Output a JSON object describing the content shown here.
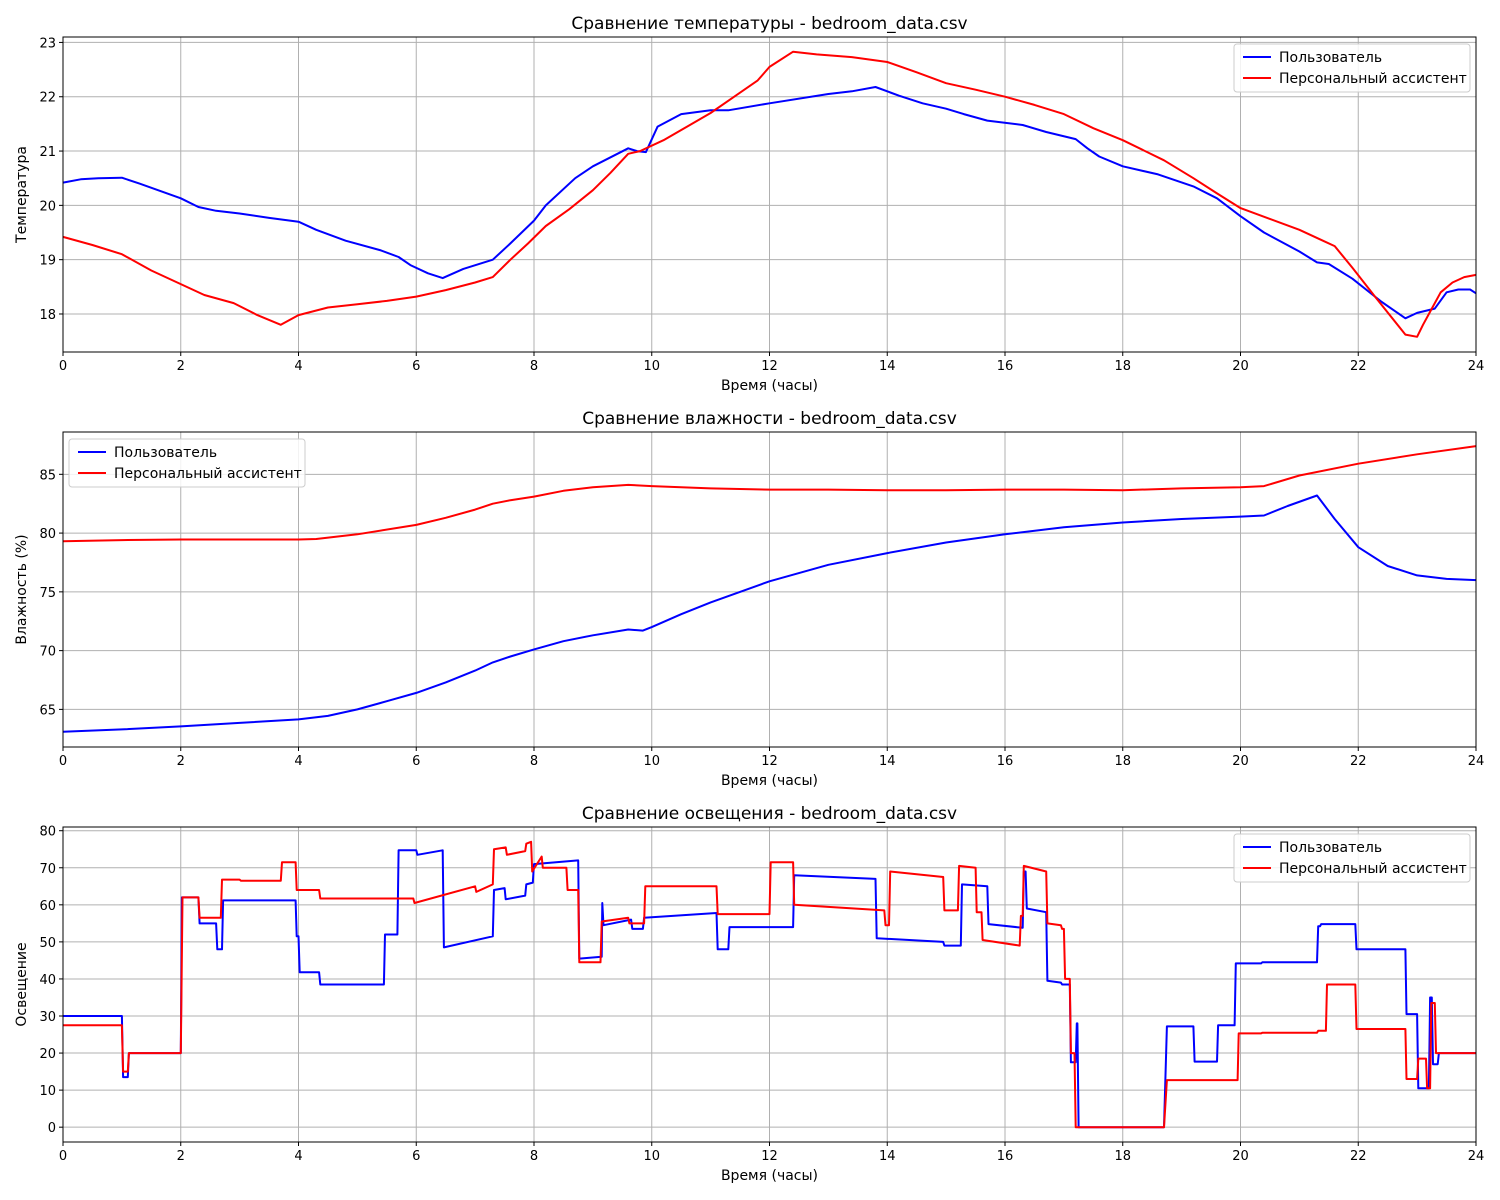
{
  "chart_data": [
    {
      "type": "line",
      "title": "Сравнение температуры - bedroom_data.csv",
      "xlabel": "Время (часы)",
      "ylabel": "Температура",
      "xlim": [
        0,
        24
      ],
      "ylim": [
        17.3,
        23.1
      ],
      "xticks": [
        0,
        2,
        4,
        6,
        8,
        10,
        12,
        14,
        16,
        18,
        20,
        22,
        24
      ],
      "yticks": [
        18,
        19,
        20,
        21,
        22,
        23
      ],
      "grid": true,
      "legend": "top-right",
      "series": [
        {
          "name": "Пользователь",
          "color": "#0000ff",
          "x": [
            0,
            0.3,
            0.6,
            1.0,
            1.3,
            2.0,
            2.3,
            2.6,
            3.0,
            3.5,
            4.0,
            4.3,
            4.8,
            5.4,
            5.7,
            5.9,
            6.2,
            6.45,
            6.8,
            7.3,
            7.6,
            8.0,
            8.2,
            8.7,
            9.0,
            9.6,
            9.75,
            9.9,
            10.1,
            10.5,
            11.0,
            11.3,
            12.0,
            13.0,
            13.4,
            13.8,
            14.2,
            14.6,
            15.0,
            15.3,
            15.7,
            16.3,
            16.7,
            17.2,
            17.4,
            17.6,
            18.0,
            18.6,
            19.2,
            19.6,
            20.0,
            20.4,
            21.0,
            21.3,
            21.5,
            21.9,
            22.4,
            22.8,
            23.0,
            23.3,
            23.5,
            23.7,
            23.9,
            24.0
          ],
          "y": [
            20.42,
            20.48,
            20.5,
            20.51,
            20.4,
            20.13,
            19.97,
            19.9,
            19.85,
            19.77,
            19.7,
            19.55,
            19.35,
            19.17,
            19.05,
            18.9,
            18.75,
            18.66,
            18.83,
            19.0,
            19.3,
            19.72,
            20.0,
            20.5,
            20.72,
            21.05,
            21.0,
            20.98,
            21.45,
            21.68,
            21.75,
            21.75,
            21.88,
            22.05,
            22.1,
            22.18,
            22.02,
            21.88,
            21.78,
            21.68,
            21.56,
            21.48,
            21.35,
            21.22,
            21.05,
            20.9,
            20.72,
            20.57,
            20.35,
            20.13,
            19.8,
            19.5,
            19.15,
            18.95,
            18.92,
            18.65,
            18.22,
            17.92,
            18.02,
            18.1,
            18.4,
            18.45,
            18.45,
            18.38
          ]
        },
        {
          "name": "Персональный ассистент",
          "color": "#ff0000",
          "x": [
            0,
            0.5,
            1.0,
            1.5,
            2.0,
            2.4,
            2.9,
            3.3,
            3.7,
            4.0,
            4.5,
            5.0,
            5.5,
            6.0,
            6.5,
            7.0,
            7.3,
            7.6,
            7.9,
            8.2,
            8.6,
            9.0,
            9.3,
            9.6,
            9.8,
            10.2,
            10.6,
            11.0,
            11.4,
            11.8,
            12.0,
            12.4,
            12.8,
            13.4,
            14.0,
            14.5,
            15.0,
            15.5,
            16.0,
            16.5,
            17.0,
            17.5,
            18.0,
            18.7,
            19.2,
            19.6,
            20.0,
            20.5,
            21.0,
            21.4,
            21.6,
            21.9,
            22.3,
            22.8,
            23.0,
            23.1,
            23.25,
            23.4,
            23.6,
            23.8,
            24.0
          ],
          "y": [
            19.42,
            19.27,
            19.1,
            18.8,
            18.55,
            18.35,
            18.2,
            17.98,
            17.8,
            17.98,
            18.12,
            18.18,
            18.24,
            18.32,
            18.44,
            18.58,
            18.68,
            19.0,
            19.3,
            19.62,
            19.93,
            20.28,
            20.6,
            20.95,
            21.0,
            21.2,
            21.45,
            21.7,
            22.0,
            22.3,
            22.55,
            22.83,
            22.78,
            22.73,
            22.64,
            22.45,
            22.25,
            22.13,
            22.0,
            21.85,
            21.68,
            21.42,
            21.2,
            20.83,
            20.5,
            20.22,
            19.95,
            19.75,
            19.55,
            19.35,
            19.25,
            18.85,
            18.3,
            17.62,
            17.58,
            17.8,
            18.1,
            18.4,
            18.58,
            18.68,
            18.72
          ]
        }
      ]
    },
    {
      "type": "line",
      "title": "Сравнение влажности - bedroom_data.csv",
      "xlabel": "Время (часы)",
      "ylabel": "Влажность (%)",
      "xlim": [
        0,
        24
      ],
      "ylim": [
        61.8,
        88.6
      ],
      "xticks": [
        0,
        2,
        4,
        6,
        8,
        10,
        12,
        14,
        16,
        18,
        20,
        22,
        24
      ],
      "yticks": [
        65,
        70,
        75,
        80,
        85
      ],
      "grid": true,
      "legend": "top-left",
      "series": [
        {
          "name": "Пользователь",
          "color": "#0000ff",
          "x": [
            0,
            1,
            2,
            3,
            4,
            4.5,
            5,
            5.5,
            6,
            6.5,
            7,
            7.3,
            7.6,
            8,
            8.5,
            9,
            9.6,
            9.85,
            10,
            10.5,
            11,
            12,
            13,
            14,
            15,
            16,
            17,
            18,
            19,
            20,
            20.4,
            20.8,
            21.3,
            21.6,
            22,
            22.5,
            23,
            23.5,
            24
          ],
          "y": [
            63.1,
            63.3,
            63.55,
            63.85,
            64.15,
            64.45,
            65.0,
            65.7,
            66.4,
            67.3,
            68.3,
            69.0,
            69.5,
            70.1,
            70.8,
            71.3,
            71.8,
            71.7,
            72.0,
            73.1,
            74.1,
            75.9,
            77.3,
            78.3,
            79.2,
            79.9,
            80.5,
            80.9,
            81.2,
            81.4,
            81.5,
            82.3,
            83.2,
            81.2,
            78.8,
            77.2,
            76.4,
            76.1,
            76.0
          ]
        },
        {
          "name": "Персональный ассистент",
          "color": "#ff0000",
          "x": [
            0,
            1,
            2,
            3,
            4,
            4.3,
            5,
            6,
            6.5,
            7,
            7.3,
            7.6,
            8,
            8.5,
            9,
            9.6,
            10,
            11,
            12,
            13,
            14,
            15,
            16,
            17,
            18,
            19,
            20,
            20.4,
            21,
            22,
            23,
            24
          ],
          "y": [
            79.3,
            79.4,
            79.45,
            79.45,
            79.45,
            79.5,
            79.9,
            80.7,
            81.3,
            82.0,
            82.5,
            82.8,
            83.1,
            83.6,
            83.9,
            84.1,
            84.0,
            83.8,
            83.7,
            83.7,
            83.65,
            83.65,
            83.7,
            83.7,
            83.65,
            83.8,
            83.9,
            84.0,
            84.9,
            85.9,
            86.7,
            87.4
          ]
        }
      ]
    },
    {
      "type": "line",
      "title": "Сравнение освещения - bedroom_data.csv",
      "xlabel": "Время (часы)",
      "ylabel": "Освещение",
      "xlim": [
        0,
        24
      ],
      "ylim": [
        -4,
        81
      ],
      "xticks": [
        0,
        2,
        4,
        6,
        8,
        10,
        12,
        14,
        16,
        18,
        20,
        22,
        24
      ],
      "yticks": [
        0,
        10,
        20,
        30,
        40,
        50,
        60,
        70,
        80
      ],
      "grid": true,
      "legend": "top-right",
      "series": [
        {
          "name": "Пользователь",
          "color": "#0000ff",
          "x": [
            0,
            1.0,
            1.02,
            1.1,
            1.12,
            2.0,
            2.02,
            2.3,
            2.32,
            2.6,
            2.62,
            2.7,
            2.72,
            3.95,
            3.97,
            4.0,
            4.02,
            4.35,
            4.37,
            5.45,
            5.47,
            5.68,
            5.7,
            6.0,
            6.02,
            6.45,
            6.47,
            7.3,
            7.32,
            7.5,
            7.52,
            7.85,
            7.87,
            7.98,
            8.0,
            8.75,
            8.77,
            9.15,
            9.16,
            9.18,
            9.65,
            9.67,
            9.85,
            9.87,
            11.1,
            11.12,
            11.3,
            11.32,
            12.4,
            12.42,
            13.8,
            13.82,
            14.95,
            14.97,
            15.25,
            15.27,
            15.7,
            15.72,
            16.3,
            16.32,
            16.35,
            16.37,
            16.7,
            16.72,
            16.95,
            16.97,
            17.1,
            17.12,
            17.2,
            17.22,
            17.23,
            17.25,
            18.7,
            18.75,
            19.2,
            19.22,
            19.6,
            19.62,
            19.9,
            19.92,
            20.35,
            20.37,
            21.3,
            21.32,
            21.35,
            21.37,
            21.95,
            21.97,
            22.8,
            22.82,
            23.0,
            23.02,
            23.2,
            23.22,
            23.25,
            23.27,
            23.35,
            23.37,
            24.0
          ],
          "y": [
            30,
            30,
            13.5,
            13.5,
            20,
            20,
            62,
            62,
            55,
            55,
            48,
            48,
            61.2,
            61.2,
            51.5,
            51.5,
            41.8,
            41.8,
            38.5,
            38.5,
            52,
            52,
            74.7,
            74.7,
            73.5,
            74.7,
            48.5,
            51.5,
            64,
            64.5,
            61.5,
            62.5,
            65.5,
            66,
            71,
            72,
            45.5,
            46,
            60.5,
            54.5,
            56,
            53.5,
            53.5,
            56.5,
            57.8,
            48,
            48,
            54,
            54,
            68,
            67,
            51,
            50,
            49,
            49,
            65.5,
            65,
            54.8,
            53.8,
            69,
            69,
            59,
            58,
            39.5,
            39,
            38.5,
            38.5,
            17.5,
            17.5,
            28,
            28,
            0,
            0,
            27.2,
            27.2,
            17.7,
            17.7,
            27.5,
            27.5,
            44.2,
            44.2,
            44.5,
            44.5,
            54.2,
            54.2,
            54.8,
            54.8,
            48,
            48,
            30.5,
            30.5,
            10.5,
            10.5,
            35,
            35,
            17,
            17,
            20,
            20
          ]
        },
        {
          "name": "Персональный ассистент",
          "color": "#ff0000",
          "x": [
            0,
            1.0,
            1.02,
            1.1,
            1.12,
            2.0,
            2.03,
            2.3,
            2.32,
            2.68,
            2.7,
            3.0,
            3.02,
            3.7,
            3.72,
            3.95,
            3.97,
            4.35,
            4.37,
            5.95,
            5.97,
            7.0,
            7.02,
            7.3,
            7.32,
            7.52,
            7.54,
            7.85,
            7.87,
            7.95,
            7.97,
            8.13,
            8.15,
            8.55,
            8.57,
            8.75,
            8.77,
            9.13,
            9.15,
            9.6,
            9.62,
            9.87,
            9.89,
            11.1,
            11.12,
            12.0,
            12.02,
            12.4,
            12.42,
            13.95,
            13.97,
            14.03,
            14.05,
            14.95,
            14.97,
            15.2,
            15.22,
            15.5,
            15.52,
            15.6,
            15.62,
            16.25,
            16.27,
            16.3,
            16.32,
            16.7,
            16.72,
            16.95,
            16.97,
            17.0,
            17.02,
            17.1,
            17.12,
            17.18,
            17.2,
            17.22,
            17.25,
            18.7,
            18.75,
            19.95,
            19.97,
            20.35,
            20.37,
            21.3,
            21.32,
            21.45,
            21.47,
            21.95,
            21.97,
            22.8,
            22.82,
            23.0,
            23.02,
            23.15,
            23.17,
            23.22,
            23.24,
            23.3,
            23.32,
            24.0
          ],
          "y": [
            27.5,
            27.5,
            15,
            15,
            20,
            20,
            62,
            62,
            56.5,
            56.5,
            66.8,
            66.8,
            66.5,
            66.5,
            71.5,
            71.5,
            64,
            64,
            61.7,
            61.7,
            60.5,
            65,
            63.5,
            65.5,
            75,
            75.5,
            73.5,
            74.5,
            76.5,
            77,
            69,
            73,
            70,
            70,
            64,
            64,
            44.5,
            44.5,
            55.5,
            56.5,
            55,
            55,
            65,
            65,
            57.5,
            57.5,
            71.5,
            71.5,
            60,
            58.5,
            54.5,
            54.5,
            69,
            67.5,
            58.5,
            58.5,
            70.5,
            70,
            58,
            58,
            50.5,
            49,
            57,
            57,
            70.5,
            69,
            55,
            54.5,
            53.5,
            53.5,
            40,
            40,
            20,
            20,
            0,
            0,
            0,
            0,
            12.7,
            12.7,
            25.3,
            25.3,
            25.5,
            25.5,
            26,
            26,
            38.5,
            38.5,
            26.5,
            26.5,
            13,
            13,
            18.5,
            18.5,
            10.5,
            10.5,
            33.5,
            33.5,
            20,
            20
          ]
        }
      ]
    }
  ]
}
